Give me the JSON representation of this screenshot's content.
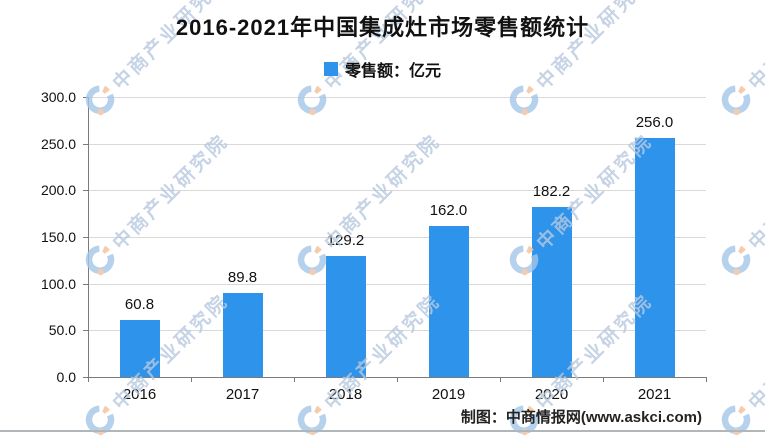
{
  "title": "2016-2021年中国集成灶市场零售额统计",
  "legend": {
    "label": "零售额：亿元",
    "color": "#2E93EA"
  },
  "chart_data": {
    "type": "bar",
    "title": "2016-2021年中国集成灶市场零售额统计",
    "categories": [
      "2016",
      "2017",
      "2018",
      "2019",
      "2020",
      "2021"
    ],
    "values": [
      60.8,
      89.8,
      129.2,
      162.0,
      182.2,
      256.0
    ],
    "series_name": "零售额：亿元",
    "xlabel": "",
    "ylabel": "",
    "ylim": [
      0,
      300
    ],
    "ytick_step": 50,
    "ytick_labels": [
      "0.0",
      "50.0",
      "100.0",
      "150.0",
      "200.0",
      "250.0",
      "300.0"
    ],
    "bar_color": "#2E93EA",
    "grid": true,
    "legend_position": "top"
  },
  "watermark": {
    "text": "中商产业研究院"
  },
  "attribution": "制图：中商情报网(www.askci.com)",
  "colors": {
    "bar": "#2E93EA",
    "grid": "#d9d9d9",
    "axis": "#7a7a7a",
    "text": "#111111",
    "watermark_text": "#b7c9df",
    "watermark_blue": "#a5c6e8",
    "watermark_orange": "#f5c09a",
    "bottom_line": "#b0b6ba"
  }
}
